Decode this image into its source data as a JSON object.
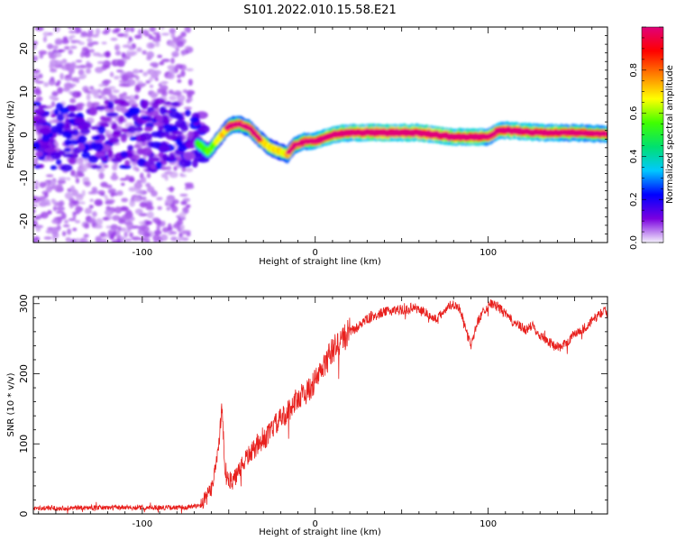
{
  "figure": {
    "title": "S101.2022.010.15.58.E21"
  },
  "chart_data": [
    {
      "type": "heatmap",
      "xlabel": "Height of straight line (km)",
      "ylabel": "Frequency (Hz)",
      "xlim": [
        -163,
        169
      ],
      "ylim": [
        -25,
        25
      ],
      "x_ticks": [
        -100,
        0,
        100
      ],
      "y_ticks": [
        -20,
        -10,
        0,
        10,
        20
      ],
      "colorbar": {
        "label": "Normalized spectral amplitude",
        "range": [
          0,
          1
        ],
        "ticks": [
          0.0,
          0.2,
          0.4,
          0.6,
          0.8
        ],
        "colormap": [
          "#f4f0fc",
          "#7a00e0",
          "#0000ff",
          "#00c8ff",
          "#00e070",
          "#40ff00",
          "#ffff00",
          "#ff8000",
          "#ff0000",
          "#e0007a"
        ]
      },
      "ridge": {
        "x": [
          -68,
          -62,
          -56,
          -50,
          -44,
          -38,
          -32,
          -26,
          -20,
          -16,
          -12,
          -6,
          0,
          10,
          20,
          40,
          60,
          80,
          100,
          106,
          112,
          130,
          150,
          169
        ],
        "y": [
          -2,
          -4,
          -1,
          2,
          2.5,
          1.5,
          -1,
          -3,
          -4,
          -4.5,
          -2.5,
          -1.5,
          -1.5,
          0,
          0.5,
          0.5,
          0.5,
          -0.5,
          -0.5,
          1,
          1,
          0.5,
          0.5,
          0.2
        ],
        "amplitude": [
          0.3,
          0.35,
          0.45,
          0.6,
          0.7,
          0.65,
          0.55,
          0.5,
          0.5,
          0.55,
          0.6,
          0.7,
          0.75,
          0.8,
          0.85,
          0.9,
          0.9,
          0.85,
          0.8,
          0.75,
          0.85,
          0.8,
          0.75,
          0.7
        ]
      },
      "noise_region": {
        "x_range": [
          -163,
          -72
        ],
        "y_range": [
          -25,
          25
        ]
      }
    },
    {
      "type": "line",
      "xlabel": "Height of straight line (km)",
      "ylabel": "SNR (10 * v/v)",
      "xlim": [
        -163,
        169
      ],
      "ylim": [
        0,
        310
      ],
      "x_ticks": [
        -100,
        0,
        100
      ],
      "y_ticks": [
        0,
        100,
        200,
        300
      ],
      "color": "#e8211e",
      "series": [
        {
          "x": [
            -163,
            -120,
            -75,
            -66,
            -60,
            -56,
            -54,
            -52,
            -48,
            -44,
            -40,
            -36,
            -32,
            -28,
            -24,
            -20,
            -16,
            -12,
            -8,
            -4,
            0,
            4,
            8,
            12,
            16,
            20,
            24,
            28,
            32,
            36,
            40,
            44,
            48,
            52,
            56,
            60,
            64,
            68,
            72,
            76,
            80,
            84,
            86,
            88,
            90,
            94,
            98,
            102,
            106,
            110,
            114,
            118,
            122,
            126,
            130,
            134,
            138,
            142,
            146,
            150,
            154,
            158,
            162,
            166,
            169
          ],
          "values": [
            8,
            9,
            9,
            12,
            35,
            95,
            150,
            55,
            45,
            60,
            80,
            90,
            100,
            110,
            125,
            135,
            145,
            160,
            170,
            175,
            190,
            205,
            225,
            240,
            250,
            260,
            265,
            275,
            280,
            285,
            288,
            290,
            292,
            290,
            295,
            292,
            288,
            278,
            282,
            295,
            300,
            292,
            270,
            255,
            240,
            275,
            292,
            300,
            295,
            285,
            275,
            268,
            262,
            270,
            255,
            248,
            240,
            238,
            245,
            258,
            262,
            270,
            280,
            288,
            290
          ]
        }
      ]
    }
  ]
}
